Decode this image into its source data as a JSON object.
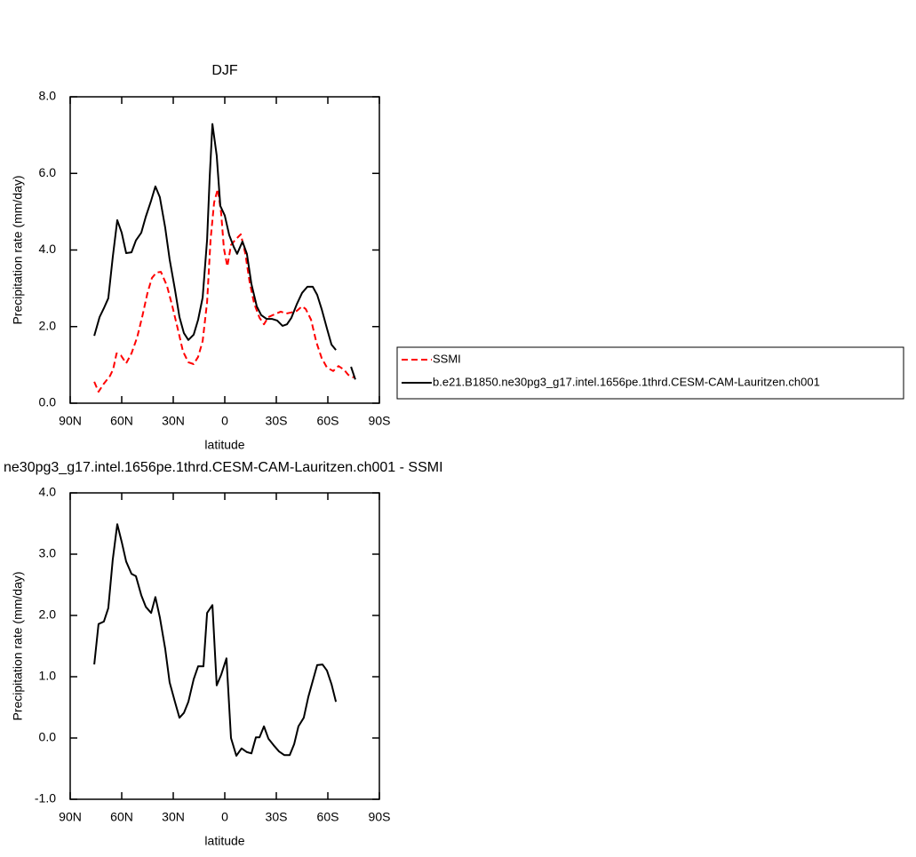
{
  "chart_data": [
    {
      "type": "line",
      "title": "DJF",
      "xlabel": "latitude",
      "ylabel": "Precipitation rate (mm/day)",
      "xlim": [
        90,
        -90
      ],
      "ylim": [
        0,
        8
      ],
      "xticks": [
        {
          "value": 90,
          "label": "90N"
        },
        {
          "value": 60,
          "label": "60N"
        },
        {
          "value": 30,
          "label": "30N"
        },
        0,
        {
          "value": -30,
          "label": "30S"
        },
        {
          "value": -60,
          "label": "60S"
        },
        {
          "value": -90,
          "label": "90S"
        }
      ],
      "yticks": [
        {
          "value": 0,
          "label": "0.0"
        },
        {
          "value": 2,
          "label": "2.0"
        },
        {
          "value": 4,
          "label": "4.0"
        },
        {
          "value": 6,
          "label": "6.0"
        },
        {
          "value": 8,
          "label": "8.0"
        }
      ],
      "legend": true,
      "series": [
        {
          "name": "SSMI",
          "color": "#ff0000",
          "dashed": true,
          "x": [
            76,
            73.5,
            70.4,
            67,
            65,
            63,
            60.5,
            57.4,
            54.3,
            51,
            48,
            45,
            42.4,
            39.8,
            37.2,
            33.6,
            30.5,
            27.4,
            24.3,
            21.2,
            18.1,
            15.5,
            12.9,
            10.3,
            8.3,
            6.2,
            4.1,
            2.1,
            0.5,
            -1.5,
            -3.6,
            -6.2,
            -9.3,
            -11.9,
            -14.5,
            -17.1,
            -20.2,
            -22.8,
            -25.4,
            -29,
            -32.6,
            -35.7,
            -38.8,
            -41.9,
            -45,
            -47.1,
            -50.2,
            -53.3,
            -56.4,
            -59.5,
            -63.1,
            -66.2,
            -69.3,
            -71.9,
            -75
          ],
          "values": [
            0.56,
            0.3,
            0.51,
            0.7,
            0.88,
            1.3,
            1.25,
            1.04,
            1.3,
            1.72,
            2.27,
            2.88,
            3.27,
            3.41,
            3.43,
            3.06,
            2.53,
            1.95,
            1.35,
            1.07,
            1.02,
            1.21,
            1.62,
            2.64,
            4.27,
            5.24,
            5.59,
            4.97,
            4.04,
            3.57,
            4.13,
            4.27,
            4.41,
            3.92,
            3.16,
            2.6,
            2.23,
            2.06,
            2.25,
            2.32,
            2.39,
            2.34,
            2.37,
            2.41,
            2.53,
            2.46,
            2.18,
            1.6,
            1.18,
            0.93,
            0.84,
            0.97,
            0.88,
            0.74,
            0.67
          ]
        },
        {
          "name": "b.e21.B1850.ne30pg3_g17.intel.1656pe.1thrd.CESM-CAM-Lauritzen.ch001",
          "color": "#000000",
          "dashed": false,
          "x": [
            76,
            72.9,
            70.4,
            67.8,
            65.2,
            62.6,
            60,
            57.4,
            54.3,
            51.7,
            48.6,
            46,
            42.9,
            40.4,
            37.8,
            34.7,
            32.1,
            29,
            26.4,
            23.8,
            21.2,
            18.1,
            15.5,
            12.9,
            10.3,
            8.8,
            7.2,
            4.7,
            2.6,
            0,
            -2.6,
            -5.2,
            -7.2,
            -10.3,
            -12.9,
            -15.5,
            -18.6,
            -21.2,
            -24.3,
            -27.4,
            -30.5,
            -33.6,
            -36.2,
            -38.8,
            -41.9,
            -45,
            -48.1,
            -51.2,
            -53.8,
            -56.4,
            -59.5,
            -62.1,
            -64.7,
            -69,
            -73.5,
            -76
          ],
          "values": [
            1.76,
            2.25,
            2.48,
            2.74,
            3.81,
            4.78,
            4.45,
            3.92,
            3.94,
            4.25,
            4.45,
            4.87,
            5.29,
            5.66,
            5.38,
            4.59,
            3.76,
            2.97,
            2.25,
            1.83,
            1.65,
            1.79,
            2.18,
            2.76,
            4.27,
            5.89,
            7.29,
            6.47,
            5.15,
            4.9,
            4.39,
            4.08,
            3.9,
            4.22,
            3.9,
            3.11,
            2.53,
            2.3,
            2.2,
            2.2,
            2.16,
            2.02,
            2.06,
            2.23,
            2.58,
            2.88,
            3.04,
            3.04,
            2.83,
            2.46,
            1.95,
            1.53,
            1.39,
            null,
            0.95,
            0.62
          ]
        }
      ]
    },
    {
      "type": "line",
      "title": "ne30pg3_g17.intel.1656pe.1thrd.CESM-CAM-Lauritzen.ch001 - SSMI",
      "xlabel": "latitude",
      "ylabel": "Precipitation rate (mm/day)",
      "xlim": [
        90,
        -90
      ],
      "ylim": [
        -1,
        4
      ],
      "xticks": [
        {
          "value": 90,
          "label": "90N"
        },
        {
          "value": 60,
          "label": "60N"
        },
        {
          "value": 30,
          "label": "30N"
        },
        0,
        {
          "value": -30,
          "label": "30S"
        },
        {
          "value": -60,
          "label": "60S"
        },
        {
          "value": -90,
          "label": "90S"
        }
      ],
      "yticks": [
        {
          "value": -1,
          "label": "-1.0"
        },
        {
          "value": 0,
          "label": "0.0"
        },
        {
          "value": 1,
          "label": "1.0"
        },
        {
          "value": 2,
          "label": "2.0"
        },
        {
          "value": 3,
          "label": "3.0"
        },
        {
          "value": 4,
          "label": "4.0"
        }
      ],
      "legend": false,
      "series": [
        {
          "color": "#000000",
          "dashed": false,
          "x": [
            76,
            73.5,
            70.4,
            67.8,
            65.2,
            62.6,
            60,
            57.4,
            54.3,
            51.7,
            48.6,
            46,
            42.9,
            40.4,
            37.8,
            34.7,
            32.1,
            29,
            26.4,
            23.8,
            21.2,
            18.1,
            15.5,
            12.4,
            10.3,
            7.2,
            4.7,
            2.1,
            -1,
            -3.6,
            -6.7,
            -9.8,
            -12.9,
            -15.5,
            -18.1,
            -20.2,
            -22.8,
            -25.4,
            -28.5,
            -31.6,
            -34.7,
            -37.8,
            -40.4,
            -42.9,
            -46,
            -48.6,
            -51.2,
            -53.8,
            -56.9,
            -59.5,
            -62.1,
            -64.7
          ],
          "values": [
            1.2,
            1.86,
            1.9,
            2.12,
            2.91,
            3.49,
            3.2,
            2.88,
            2.68,
            2.64,
            2.33,
            2.14,
            2.04,
            2.3,
            1.97,
            1.46,
            0.91,
            0.59,
            0.33,
            0.41,
            0.59,
            0.96,
            1.17,
            1.17,
            2.04,
            2.17,
            0.86,
            1.03,
            1.3,
            0.0,
            -0.29,
            -0.17,
            -0.23,
            -0.25,
            0.01,
            0.01,
            0.19,
            -0.01,
            -0.12,
            -0.22,
            -0.28,
            -0.28,
            -0.1,
            0.19,
            0.33,
            0.67,
            0.93,
            1.19,
            1.2,
            1.1,
            0.88,
            0.59
          ]
        }
      ]
    }
  ]
}
